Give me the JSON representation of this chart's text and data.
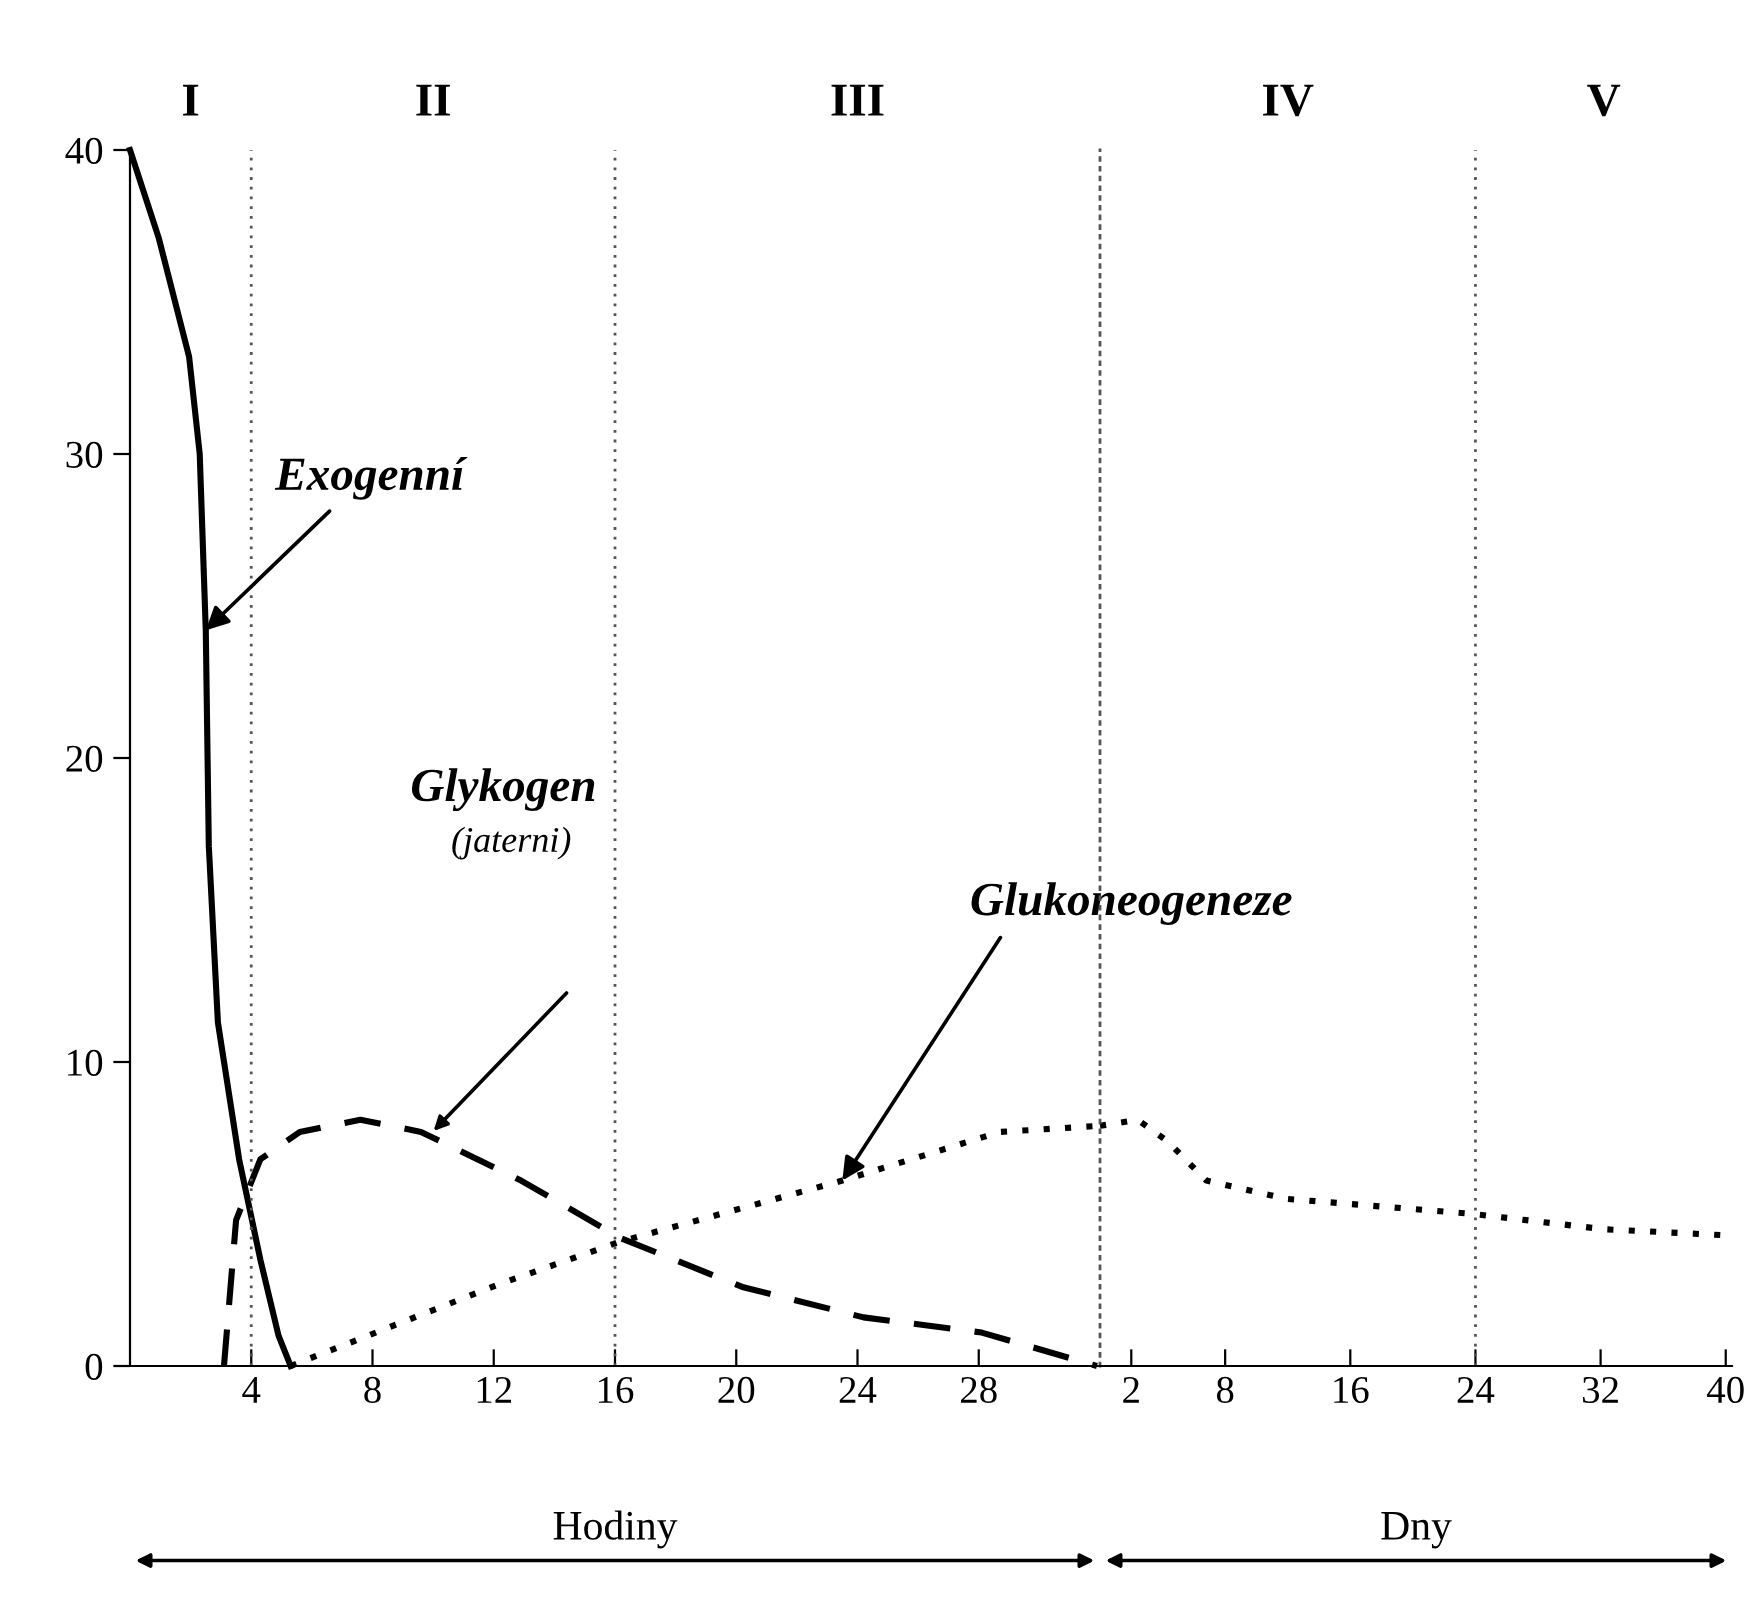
{
  "chart_data": [
    {
      "type": "line",
      "xlabel": "Hodiny",
      "xlim": [
        0,
        32
      ],
      "xticks": [
        4,
        8,
        12,
        16,
        20,
        24,
        28
      ],
      "ylim": [
        0,
        40
      ],
      "yticks": [
        0,
        10,
        20,
        30,
        40
      ],
      "tick_labels": "xy",
      "series": [
        {
          "color": "#000000",
          "line_style": "solid",
          "x": [
            0,
            0.95,
            1.95,
            2.3,
            2.5,
            2.6,
            2.9,
            3.6,
            4.3,
            4.9,
            5.3
          ],
          "values": [
            40,
            37.1,
            33.2,
            30,
            24.2,
            17.1,
            11.3,
            6.8,
            3.5,
            1.0,
            0
          ]
        },
        {
          "color": "#000000",
          "line_style": "dashed",
          "x": [
            3.1,
            3.5,
            4.3,
            5.6,
            7.6,
            9.6,
            12.9,
            16.2,
            20.2,
            24.2,
            28.1,
            31.9
          ],
          "values": [
            0,
            4.8,
            6.8,
            7.7,
            8.1,
            7.7,
            6.1,
            4.2,
            2.6,
            1.6,
            1.1,
            0
          ]
        },
        {
          "color": "#000000",
          "line_style": "dotted",
          "x": [
            5.3,
            12.2,
            16.2,
            23.5,
            28.7,
            32
          ],
          "values": [
            0,
            2.7,
            4.1,
            6.1,
            7.7,
            7.9
          ]
        }
      ],
      "annotations": [
        "I",
        "II",
        "III",
        {
          "text": "Exogenní",
          "x": 2.5,
          "y": 24.2
        },
        "Glykogen",
        "(jaterni)",
        {
          "text": "Glukoneogeneze",
          "x": 23.5,
          "y": 6.1
        }
      ],
      "ref_lines": [
        {
          "axis": "x",
          "value": 4,
          "line_style": "dotted"
        },
        {
          "axis": "x",
          "value": 16,
          "line_style": "dotted"
        }
      ]
    },
    {
      "type": "line",
      "xlabel": "Dny",
      "xlim": [
        0,
        40.4
      ],
      "xticks": [
        2,
        8,
        16,
        24,
        32,
        40
      ],
      "ylim": [
        0,
        40
      ],
      "yticks": [
        0,
        10,
        20,
        30,
        40
      ],
      "tick_labels": "x",
      "series": [
        {
          "color": "#000000",
          "line_style": "dotted",
          "x": [
            0,
            2.4,
            4.3,
            6.8,
            11.9,
            23.9,
            32.2,
            40
          ],
          "values": [
            7.9,
            8.1,
            7.4,
            6.1,
            5.5,
            5.0,
            4.5,
            4.3
          ]
        }
      ],
      "annotations": [
        "IV",
        "V"
      ],
      "ref_lines": [
        {
          "axis": "x",
          "value": 24,
          "line_style": "dotted"
        }
      ]
    }
  ]
}
